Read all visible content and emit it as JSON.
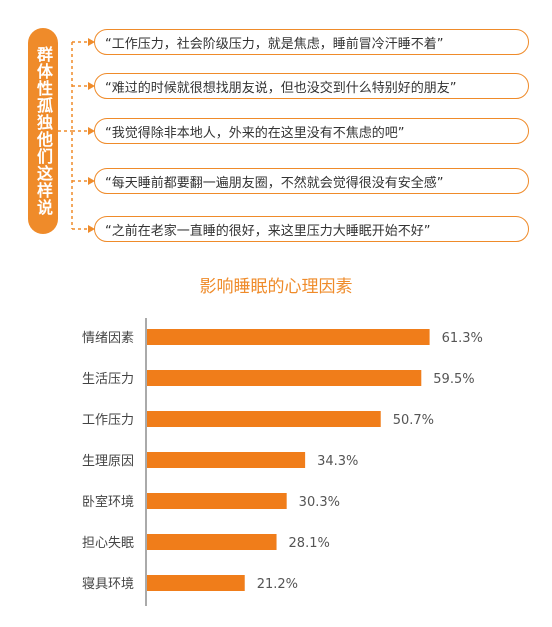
{
  "side_label": "群体性孤独他们这样说",
  "quotes": [
    "“工作压力，社会阶级压力，就是焦虑，睡前冒冷汗睡不着”",
    "“难过的时候就很想找朋友说，但也没交到什么特别好的朋友”",
    "“我觉得除非本地人，外来的在这里没有不焦虑的吧”",
    "“每天睡前都要翻一遍朋友圈，不然就会觉得很没有安全感”",
    "“之前在老家一直睡的很好，来这里压力大睡眠开始不好”"
  ],
  "colors": {
    "accent": "#ef8b2a",
    "bar": "#f07d1a"
  },
  "chart_data": {
    "type": "bar",
    "orientation": "horizontal",
    "title": "影响睡眠的心理因素",
    "categories": [
      "情绪因素",
      "生活压力",
      "工作压力",
      "生理原因",
      "卧室环境",
      "担心失眠",
      "寝具环境"
    ],
    "values": [
      61.3,
      59.5,
      50.7,
      34.3,
      30.3,
      28.1,
      21.2
    ],
    "value_labels": [
      "61.3%",
      "59.5%",
      "50.7%",
      "34.3%",
      "30.3%",
      "28.1%",
      "21.2%"
    ],
    "xlim": [
      0,
      100
    ],
    "grid": false,
    "legend": "none"
  }
}
